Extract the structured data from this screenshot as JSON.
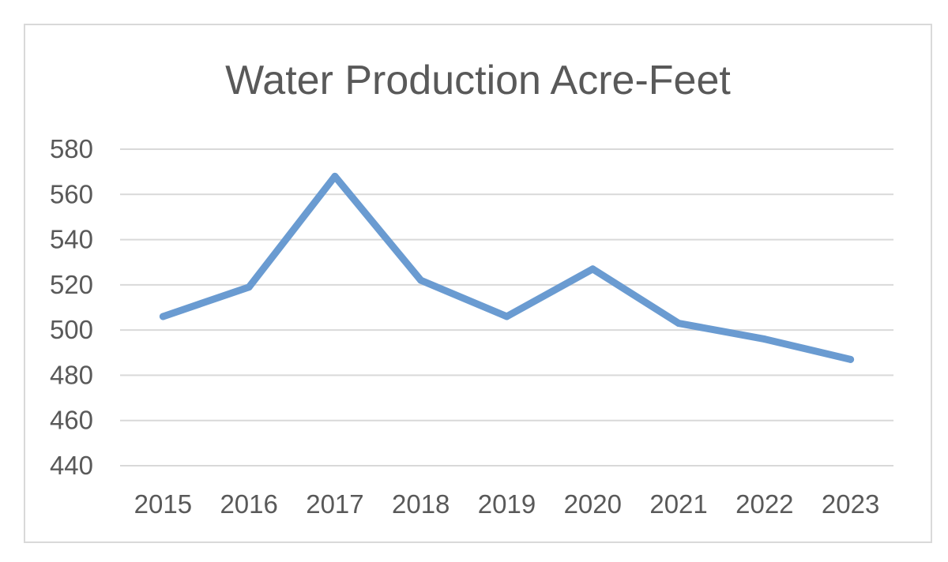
{
  "chart_data": {
    "type": "line",
    "title": "Water Production Acre-Feet",
    "xlabel": "",
    "ylabel": "",
    "categories": [
      "2015",
      "2016",
      "2017",
      "2018",
      "2019",
      "2020",
      "2021",
      "2022",
      "2023"
    ],
    "series": [
      {
        "values": [
          506,
          519,
          568,
          522,
          506,
          527,
          503,
          496,
          487
        ],
        "color": "#6a9bd1"
      }
    ],
    "ylim": [
      440,
      580
    ],
    "yticks": [
      "440",
      "460",
      "480",
      "500",
      "520",
      "540",
      "560",
      "580"
    ],
    "grid": true,
    "legend": "none",
    "colors": {
      "gridline": "#d9d9d9",
      "text": "#595959",
      "border": "#d9d9d9"
    }
  }
}
